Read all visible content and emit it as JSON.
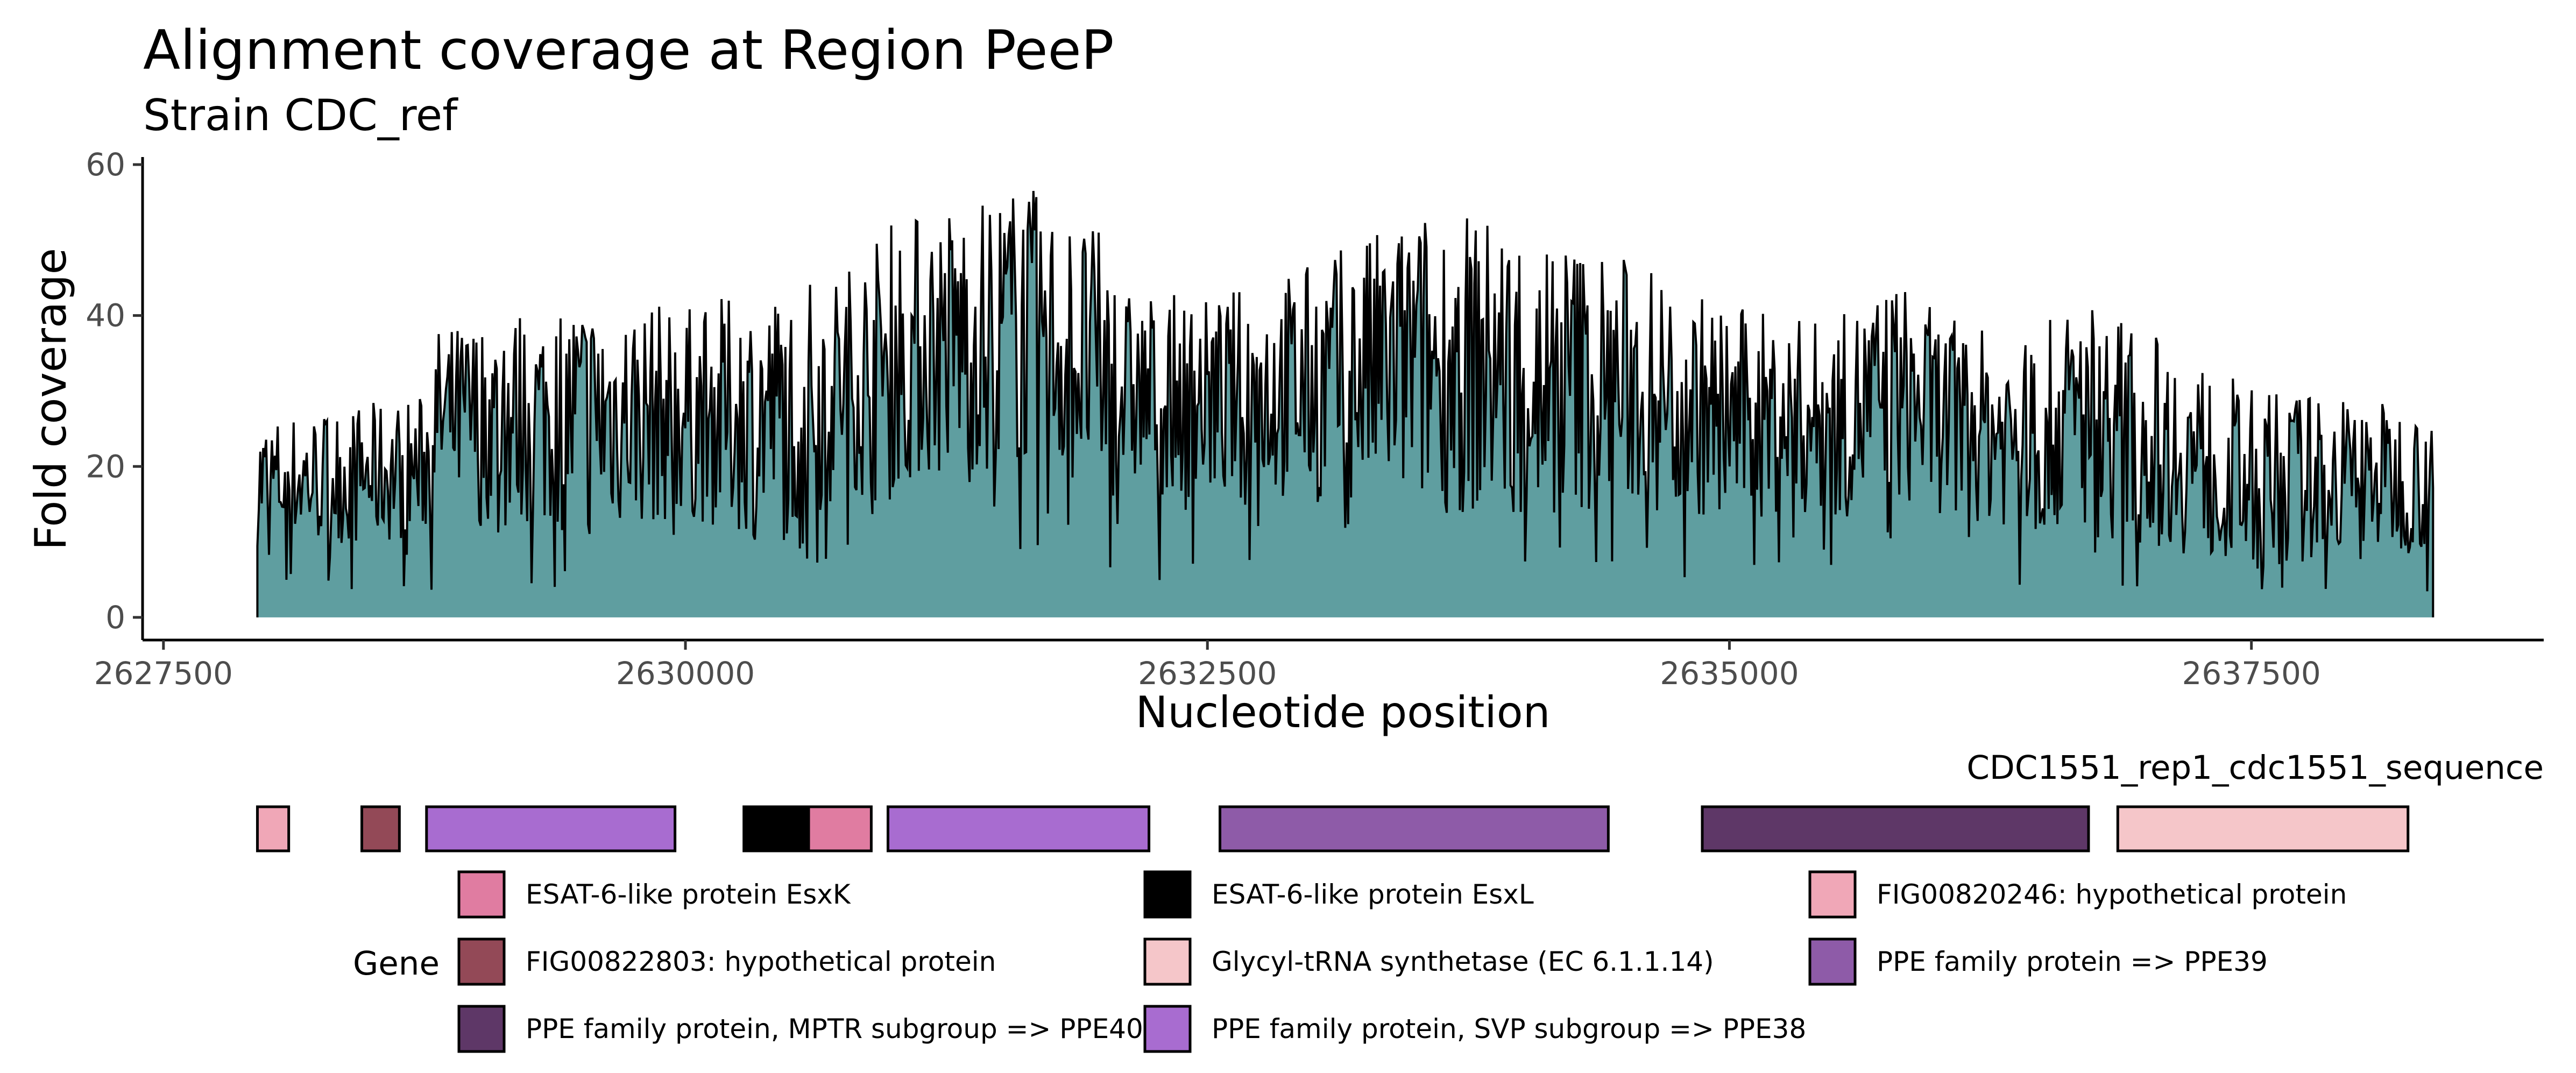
{
  "chart_data": [
    {
      "type": "area",
      "title": "Alignment coverage at Region PeeP",
      "subtitle": "Strain CDC_ref",
      "xlabel": "Nucleotide position",
      "ylabel": "Fold coverage",
      "xlim": [
        2627400,
        2638900
      ],
      "ylim": [
        -3,
        61
      ],
      "x_ticks": [
        "2627500",
        "2630000",
        "2632500",
        "2635000",
        "2637500"
      ],
      "x_tick_values": [
        2627500,
        2630000,
        2632500,
        2635000,
        2637500
      ],
      "y_ticks": [
        "0",
        "20",
        "40",
        "60"
      ],
      "y_tick_values": [
        0,
        20,
        40,
        60
      ],
      "grid": false,
      "fill_color": "#5f9ea0",
      "line_color": "#000000",
      "x_start": 2627950,
      "x_end": 2638370,
      "coverage_profile": {
        "x": [
          2627950,
          2628500,
          2628750,
          2628800,
          2629500,
          2630000,
          2630500,
          2630800,
          2631000,
          2631600,
          2632000,
          2632100,
          2632500,
          2633000,
          2633500,
          2634000,
          2634500,
          2635000,
          2635500,
          2635800,
          2636000,
          2636400,
          2636700,
          2637000,
          2637500,
          2638000,
          2638370
        ],
        "mean": [
          18,
          19,
          20,
          26,
          27,
          27,
          27,
          32,
          35,
          39,
          33,
          30,
          29,
          31,
          34,
          33,
          31,
          27,
          26,
          30,
          27,
          24,
          27,
          24,
          18,
          19,
          18
        ],
        "max": [
          27,
          29,
          30,
          39,
          44,
          42,
          45,
          48,
          54,
          59,
          52,
          44,
          43,
          48,
          55,
          54,
          49,
          42,
          40,
          46,
          41,
          37,
          44,
          39,
          31,
          30,
          28
        ]
      }
    },
    {
      "type": "gene-track",
      "contig": "CDC1551_rep1_cdc1551_sequence",
      "legend_title": "Gene",
      "legend": [
        {
          "label": "ESAT-6-like protein EsxK",
          "color": "#e07ca1"
        },
        {
          "label": "ESAT-6-like protein EsxL",
          "color": "#000000"
        },
        {
          "label": "FIG00820246: hypothetical protein",
          "color": "#f0a7b7"
        },
        {
          "label": "FIG00822803: hypothetical protein",
          "color": "#934957"
        },
        {
          "label": "Glycyl-tRNA synthetase (EC 6.1.1.14)",
          "color": "#f5c6c9"
        },
        {
          "label": "PPE family protein => PPE39",
          "color": "#8e5ba8"
        },
        {
          "label": "PPE family protein, MPTR subgroup => PPE40",
          "color": "#5e3767"
        },
        {
          "label": "PPE family protein, SVP subgroup => PPE38",
          "color": "#a86cd0"
        }
      ],
      "genes": [
        {
          "start": 2627950,
          "end": 2628100,
          "legend_index": 2
        },
        {
          "start": 2628450,
          "end": 2628630,
          "legend_index": 3
        },
        {
          "start": 2628760,
          "end": 2629950,
          "legend_index": 7
        },
        {
          "start": 2630280,
          "end": 2630590,
          "legend_index": 1
        },
        {
          "start": 2630590,
          "end": 2630890,
          "legend_index": 0
        },
        {
          "start": 2630970,
          "end": 2632220,
          "legend_index": 7
        },
        {
          "start": 2632560,
          "end": 2634420,
          "legend_index": 5
        },
        {
          "start": 2634870,
          "end": 2636720,
          "legend_index": 6
        },
        {
          "start": 2636860,
          "end": 2638250,
          "legend_index": 4
        }
      ]
    }
  ]
}
